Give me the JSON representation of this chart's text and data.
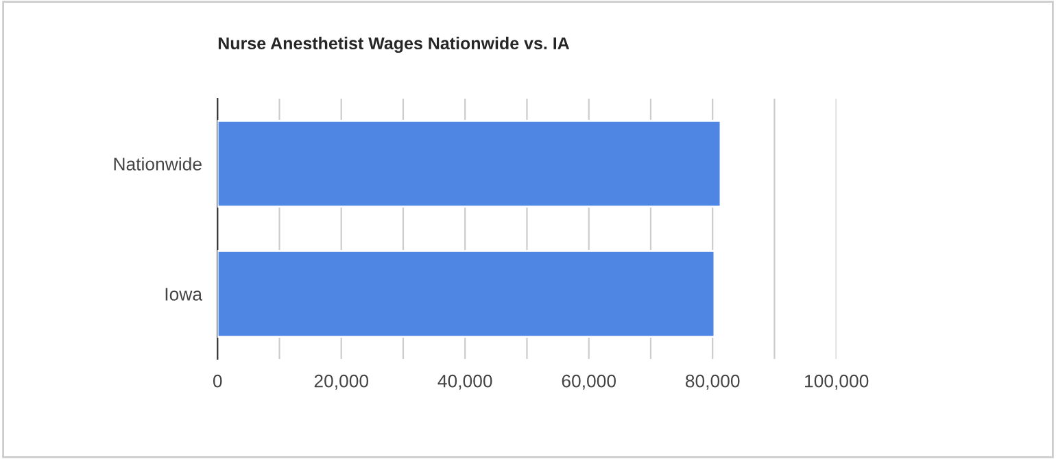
{
  "chart_data": {
    "type": "bar",
    "orientation": "horizontal",
    "title": "Nurse Anesthetist Wages Nationwide vs. IA",
    "categories": [
      "Nationwide",
      "Iowa"
    ],
    "values": [
      81300,
      80300
    ],
    "color": "#5086e3",
    "xlim": [
      0,
      100000
    ],
    "xticks": [
      0,
      {
        "value": 10000,
        "label": null
      },
      {
        "value": 20000,
        "label": "20,000"
      },
      {
        "value": 30000,
        "label": null
      },
      {
        "value": 40000,
        "label": "40,000"
      },
      {
        "value": 50000,
        "label": null
      },
      {
        "value": 60000,
        "label": "60,000"
      },
      {
        "value": 70000,
        "label": null
      },
      {
        "value": 80000,
        "label": "80,000"
      },
      {
        "value": 90000,
        "label": null
      },
      {
        "value": 100000,
        "label": "100,000"
      }
    ],
    "grid": "x"
  }
}
